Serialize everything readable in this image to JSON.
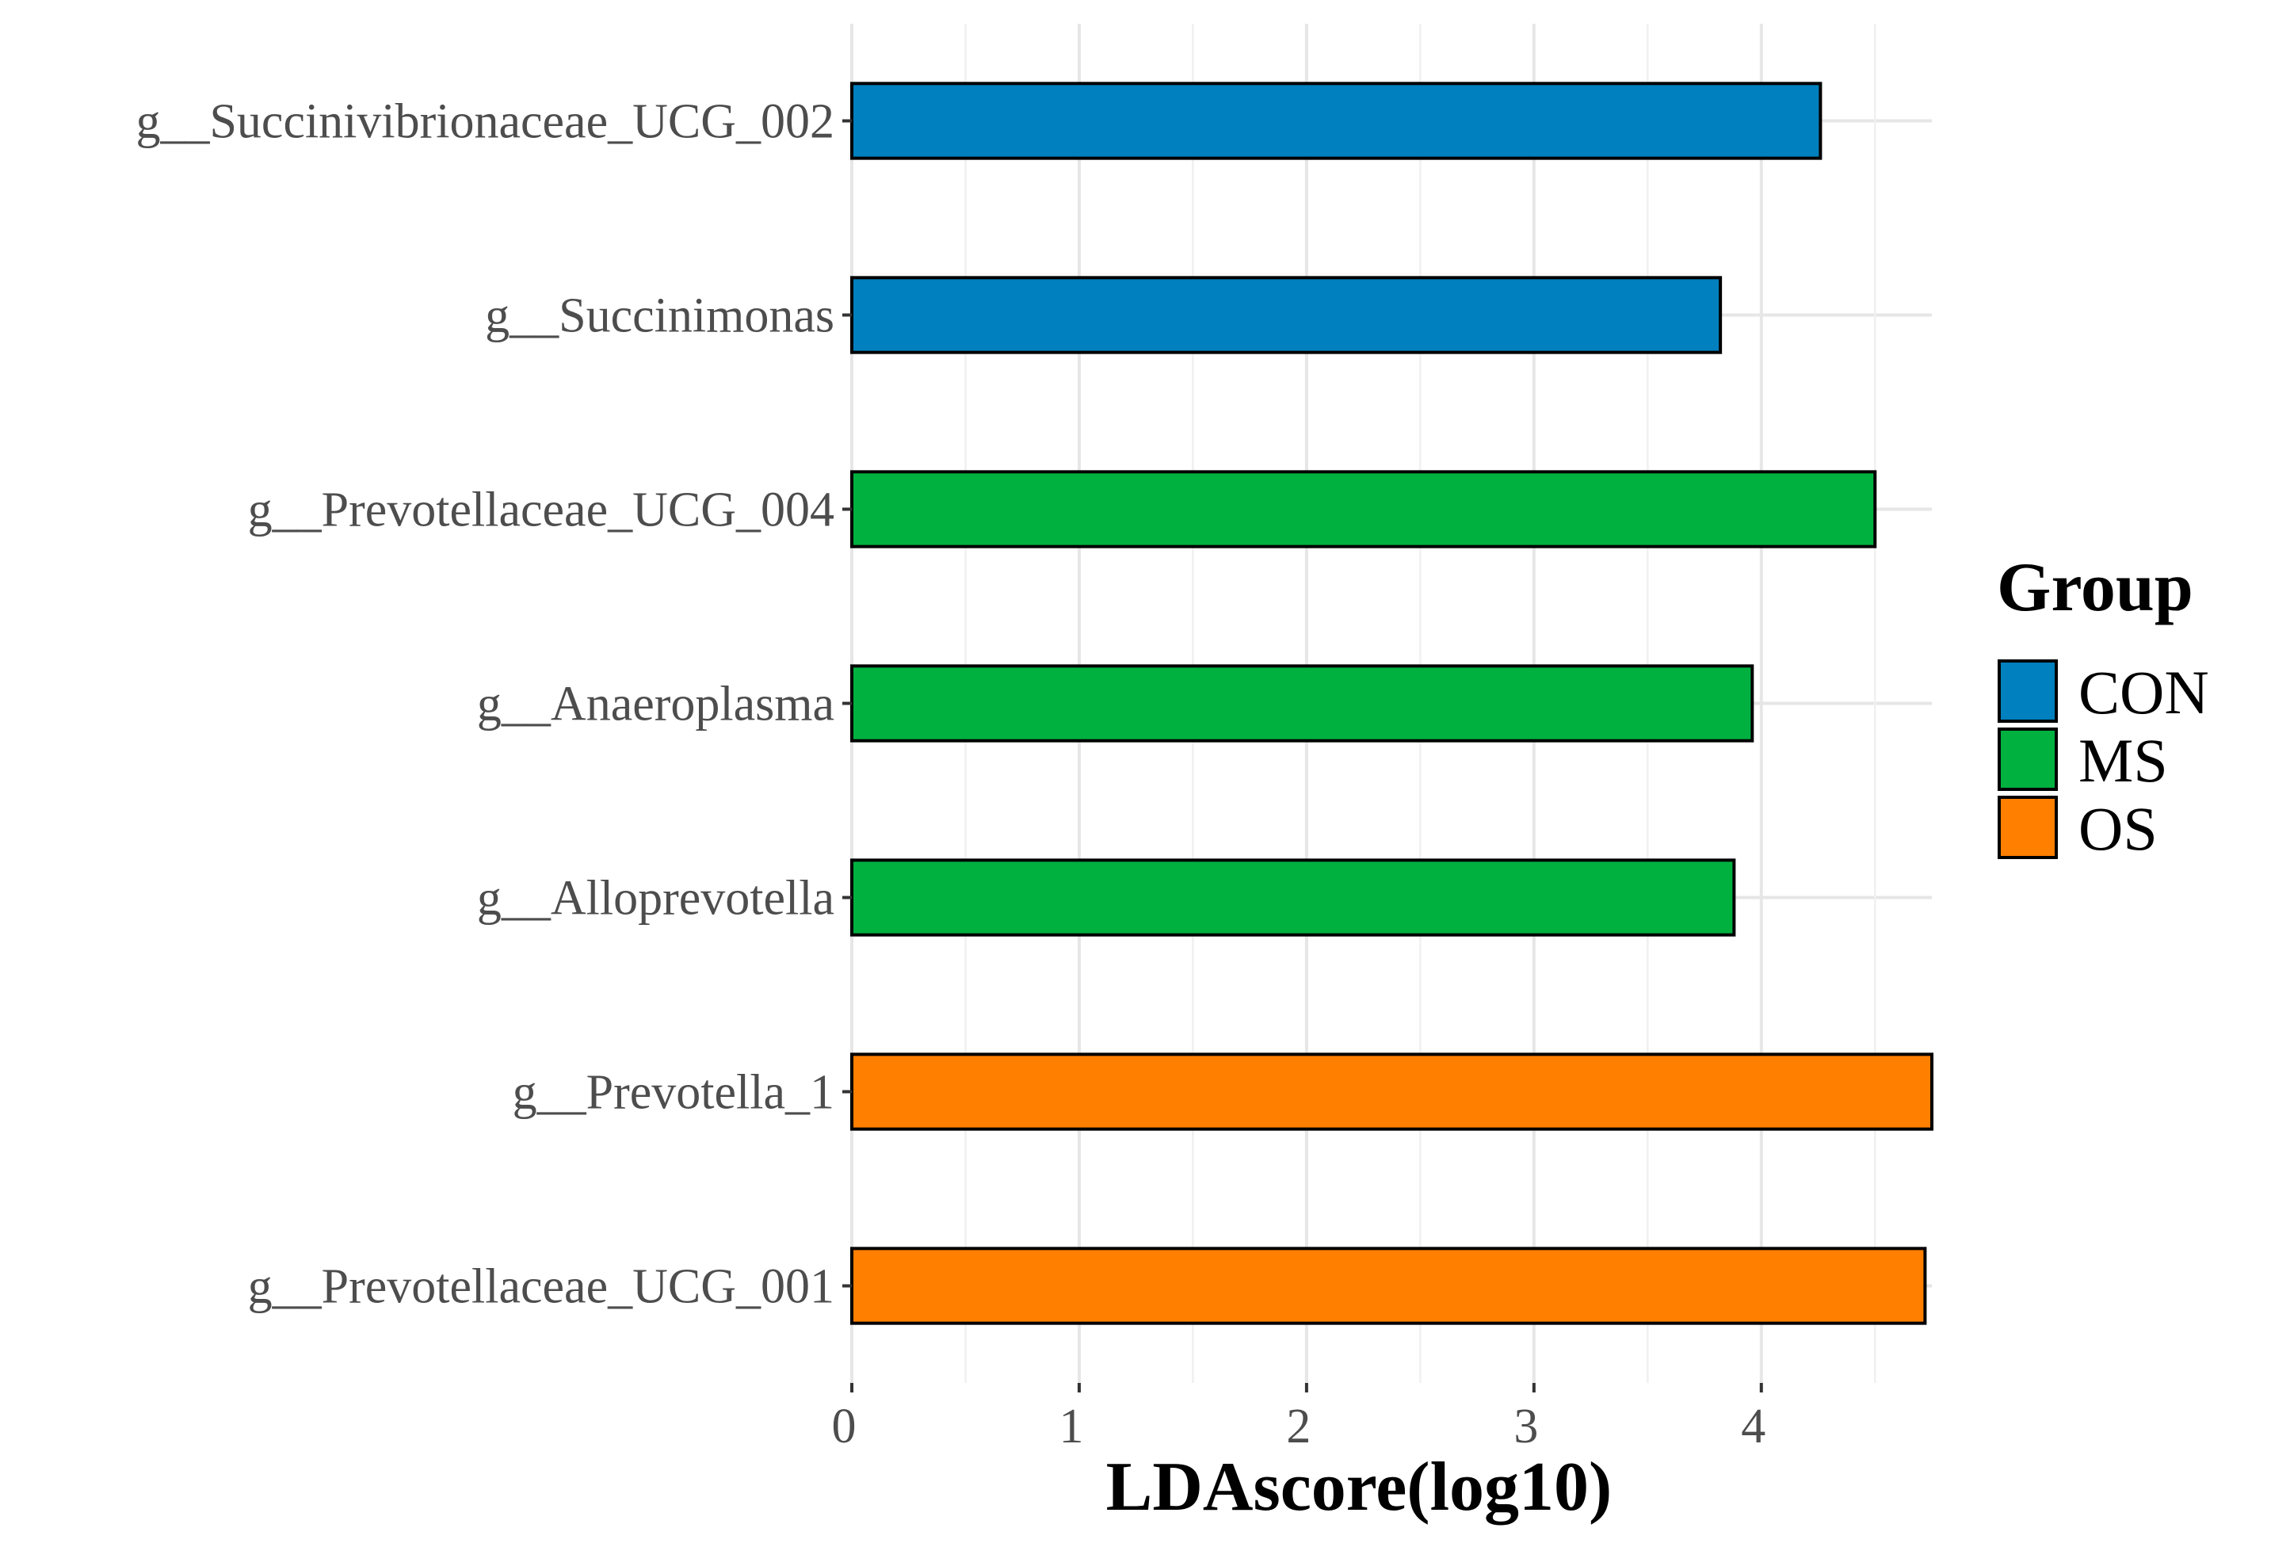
{
  "chart_data": {
    "type": "bar",
    "orientation": "horizontal",
    "categories": [
      "g__Succinivibrionaceae_UCG_002",
      "g__Succinimonas",
      "g__Prevotellaceae_UCG_004",
      "g__Anaeroplasma",
      "g__Alloprevotella",
      "g__Prevotella_1",
      "g__Prevotellaceae_UCG_001"
    ],
    "values": [
      4.26,
      3.82,
      4.5,
      3.96,
      3.88,
      4.75,
      4.72
    ],
    "groups": [
      "CON",
      "CON",
      "MS",
      "MS",
      "MS",
      "OS",
      "OS"
    ],
    "xlabel": "LDAscore(log10)",
    "ylabel": "",
    "xlim": [
      0,
      4.75
    ],
    "xticks": [
      "0",
      "1",
      "2",
      "3",
      "4"
    ],
    "grid": true,
    "legend": {
      "title": "Group",
      "position": "right",
      "entries": [
        {
          "label": "CON",
          "color": "#0080BE"
        },
        {
          "label": "MS",
          "color": "#00B140"
        },
        {
          "label": "OS",
          "color": "#FF7F00"
        }
      ]
    }
  }
}
